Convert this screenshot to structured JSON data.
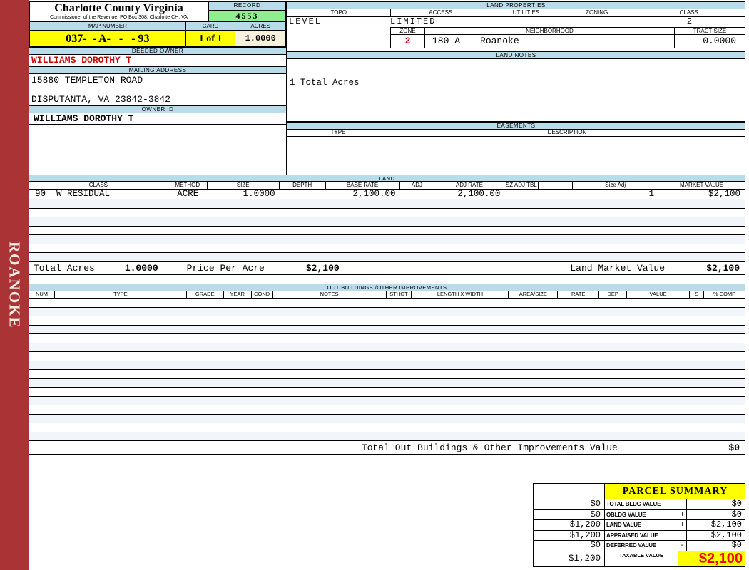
{
  "colors": {
    "header_blue": "#B9DCEA",
    "record_green": "#90EE90",
    "highlight_yellow": "#FFFF00",
    "acres_cream": "#F5F1DC",
    "sidebar_red": "#A93335",
    "owner_red": "#CC0000",
    "taxable_red": "#FF0000",
    "stripe_blue": "#F2F5FA"
  },
  "sidebar": {
    "district": "ROANOKE"
  },
  "header": {
    "title": "Charlotte County Virginia",
    "subtitle": "Commissioner of the Revenue, PO Box 308, Charlotte CH, VA"
  },
  "record": {
    "label": "RECORD",
    "value": "4553"
  },
  "map_number": {
    "label": "MAP NUMBER",
    "value": "037-  - A-   -   - 93"
  },
  "card": {
    "label": "CARD",
    "value": "1 of 1"
  },
  "acres": {
    "label": "ACRES",
    "value": "1.0000"
  },
  "owner": {
    "deeded_label": "DEEDED OWNER",
    "deeded_value": "WILLIAMS DOROTHY T",
    "mailing_label": "MAILING ADDRESS",
    "address_line1": "15880 TEMPLETON ROAD",
    "address_line2": "DISPUTANTA, VA 23842-3842",
    "owner_id_label": "OWNER ID",
    "owner_id_value": "WILLIAMS DOROTHY T"
  },
  "land_properties": {
    "title": "LAND PROPERTIES",
    "col_headers": [
      "TOPO",
      "ACCESS",
      "UTILITIES",
      "ZONING",
      "CLASS"
    ],
    "topo_value": "LEVEL",
    "access_value": "LIMITED",
    "utilities_value": "",
    "zoning_value": "",
    "class_value": "2",
    "zone_label": "ZONE",
    "zone_value": "2",
    "neighborhood_label": "NEIGHBORHOOD",
    "neighborhood_code": "180 A",
    "neighborhood_name": "Roanoke",
    "tract_label": "TRACT SIZE",
    "tract_value": "0.0000"
  },
  "land_notes": {
    "title": "LAND NOTES",
    "text": "1 Total Acres"
  },
  "easements": {
    "title": "EASEMENTS",
    "type_label": "TYPE",
    "description_label": "DESCRIPTION"
  },
  "land": {
    "title": "LAND",
    "headers": [
      "CLASS",
      "METHOD",
      "SIZE",
      "DEPTH",
      "BASE RATE",
      "ADJ",
      "ADJ RATE",
      "SZ ADJ TBL",
      "",
      "Size Adj",
      "MARKET VALUE"
    ],
    "row": [
      "90  W RESIDUAL",
      "ACRE",
      "1.0000",
      "",
      "2,100.00",
      "",
      "2,100.00",
      "",
      "",
      "1",
      "$2,100"
    ],
    "empty_rows": 7,
    "totals": {
      "total_acres_label": "Total Acres",
      "total_acres_value": "1.0000",
      "price_per_acre_label": "Price Per Acre",
      "price_per_acre_value": "$2,100",
      "market_value_label": "Land Market Value",
      "market_value_value": "$2,100"
    }
  },
  "out_buildings": {
    "title": "OUT BUILDINGS /OTHER IMPROVEMENTS",
    "headers": [
      "NUM",
      "TYPE",
      "GRADE",
      "YEAR",
      "COND",
      "NOTES",
      "STHGT",
      "LENGTH X WIDTH",
      "AREA/SIZE",
      "RATE",
      "DEP",
      "VALUE",
      "S",
      "% COMP"
    ],
    "empty_rows": 16,
    "total_label": "Total Out Buildings & Other Improvements Value",
    "total_value": "$0"
  },
  "parcel_summary": {
    "title": "PARCEL SUMMARY",
    "rows": [
      {
        "prior": "$0",
        "label": "TOTAL BLDG VALUE",
        "op": "",
        "value": "$0"
      },
      {
        "prior": "$0",
        "label": "OBLDG VALUE",
        "op": "+",
        "value": "$0"
      },
      {
        "prior": "$1,200",
        "label": "LAND VALUE",
        "op": "+",
        "value": "$2,100"
      },
      {
        "prior": "$1,200",
        "label": "APPRAISED VALUE",
        "op": "",
        "value": "$2,100"
      },
      {
        "prior": "$0",
        "label": "DEFERRED VALUE",
        "op": "-",
        "value": "$0"
      }
    ],
    "taxable": {
      "prior": "$1,200",
      "label": "TAXABLE VALUE",
      "value": "$2,100"
    }
  }
}
